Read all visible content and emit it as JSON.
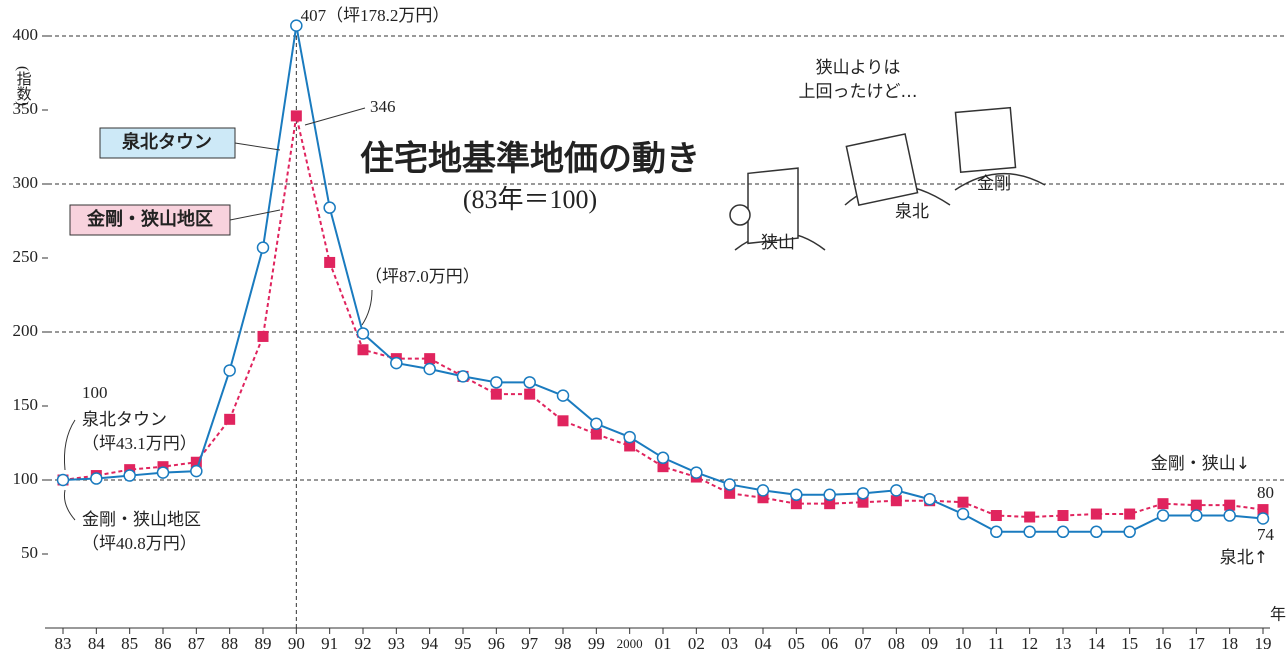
{
  "chart_data": {
    "type": "line",
    "title": "住宅地基準地価の動き",
    "subtitle": "(83年＝100)",
    "ylabel": "(指数)",
    "xlabel": "年",
    "categories": [
      "83",
      "84",
      "85",
      "86",
      "87",
      "88",
      "89",
      "90",
      "91",
      "92",
      "93",
      "94",
      "95",
      "96",
      "97",
      "98",
      "99",
      "2000",
      "01",
      "02",
      "03",
      "04",
      "05",
      "06",
      "07",
      "08",
      "09",
      "10",
      "11",
      "12",
      "13",
      "14",
      "15",
      "16",
      "17",
      "18",
      "19"
    ],
    "series": [
      {
        "name": "泉北タウン",
        "color": "#1a7bbf",
        "marker": "circle",
        "values": [
          100,
          101,
          103,
          105,
          106,
          174,
          257,
          407,
          284,
          199,
          179,
          175,
          170,
          166,
          166,
          157,
          138,
          129,
          115,
          105,
          97,
          93,
          90,
          90,
          91,
          93,
          87,
          77,
          65,
          65,
          65,
          65,
          65,
          76,
          76,
          76,
          74
        ]
      },
      {
        "name": "金剛・狭山地区",
        "color": "#e0245e",
        "marker": "square",
        "values": [
          100,
          103,
          107,
          109,
          112,
          141,
          197,
          346,
          247,
          188,
          182,
          182,
          170,
          158,
          158,
          140,
          131,
          123,
          109,
          102,
          91,
          88,
          84,
          84,
          85,
          86,
          86,
          85,
          76,
          75,
          76,
          77,
          77,
          84,
          83,
          83,
          80
        ]
      }
    ],
    "ylim": [
      0,
      400
    ],
    "yticks": [
      50,
      100,
      150,
      200,
      250,
      300,
      350,
      400
    ],
    "grid_values": [
      100,
      200,
      300,
      400
    ],
    "annotations": [
      "407（坪178.2万円）",
      "346",
      "（坪87.0万円）",
      "100",
      "泉北タウン",
      "（坪43.1万円）",
      "金剛・狭山地区",
      "（坪40.8万円）",
      "金剛・狭山↓",
      "80",
      "74",
      "泉北↑",
      "狭山よりは",
      "上回ったけど…",
      "狭山",
      "泉北",
      "金剛"
    ]
  }
}
